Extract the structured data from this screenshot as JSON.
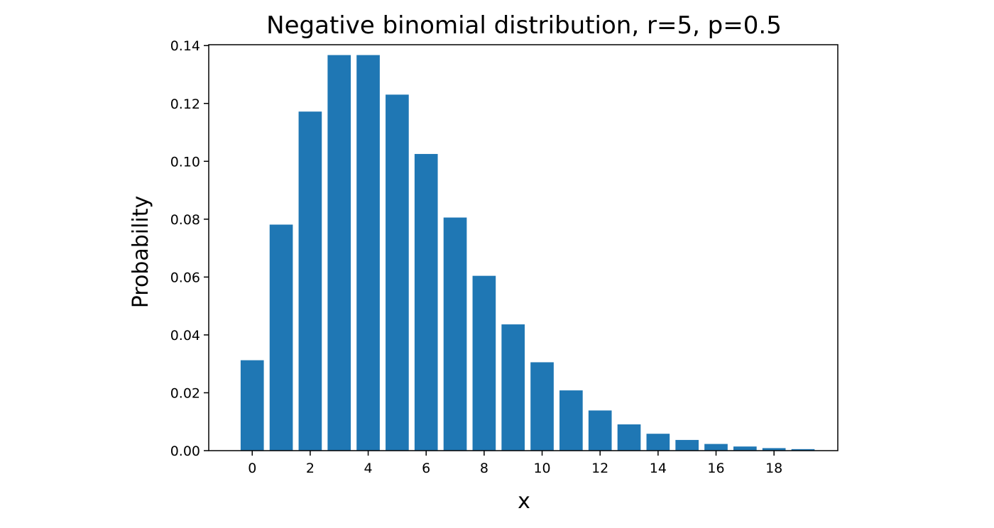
{
  "chart_data": {
    "type": "bar",
    "title": "Negative binomial distribution, r=5, p=0.5",
    "xlabel": "x",
    "ylabel": "Probability",
    "categories": [
      0,
      1,
      2,
      3,
      4,
      5,
      6,
      7,
      8,
      9,
      10,
      11,
      12,
      13,
      14,
      15,
      16,
      17,
      18,
      19
    ],
    "values": [
      0.03125,
      0.078125,
      0.117188,
      0.136719,
      0.136719,
      0.123047,
      0.102539,
      0.080566,
      0.060425,
      0.04364,
      0.030548,
      0.020827,
      0.013885,
      0.009079,
      0.005837,
      0.003697,
      0.002311,
      0.001427,
      0.000872,
      0.000528
    ],
    "xlim": [
      -1.5,
      20.2
    ],
    "ylim": [
      0,
      0.1403
    ],
    "x_ticks": [
      0,
      2,
      4,
      6,
      8,
      10,
      12,
      14,
      16,
      18
    ],
    "x_tick_labels": [
      "0",
      "2",
      "4",
      "6",
      "8",
      "10",
      "12",
      "14",
      "16",
      "18"
    ],
    "y_ticks": [
      0,
      0.02,
      0.04,
      0.06,
      0.08,
      0.1,
      0.12,
      0.14
    ],
    "y_tick_labels": [
      "0.00",
      "0.02",
      "0.04",
      "0.06",
      "0.08",
      "0.10",
      "0.12",
      "0.14"
    ],
    "bar_width": 0.8,
    "bar_color": "#1f77b4",
    "grid": false,
    "legend": "none"
  }
}
